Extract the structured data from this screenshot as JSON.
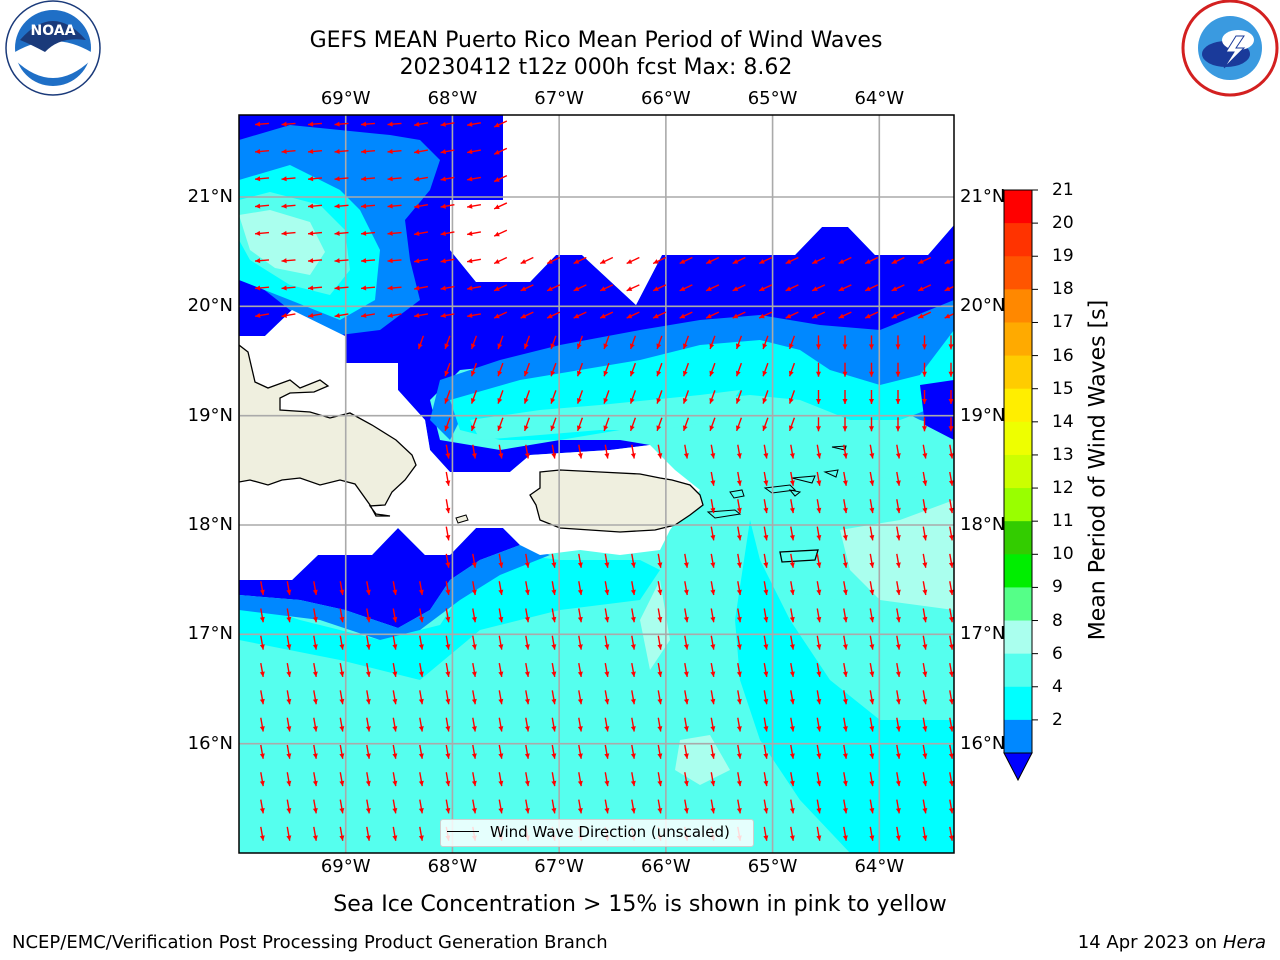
{
  "header": {
    "title_line1": "GEFS MEAN Puerto Rico Mean Period of Wind Waves",
    "title_line2": "20230412 t12z 000h fcst   Max: 8.62"
  },
  "logos": {
    "left": "noa-logo",
    "right": "nws-logo"
  },
  "map": {
    "lon_labels": [
      "69°W",
      "68°W",
      "67°W",
      "66°W",
      "65°W",
      "64°W"
    ],
    "lat_labels": [
      "21°N",
      "20°N",
      "19°N",
      "18°N",
      "17°N",
      "16°N"
    ],
    "lon_values": [
      -69,
      -68,
      -67,
      -66,
      -65,
      -64
    ],
    "lat_values": [
      21,
      20,
      19,
      18,
      17,
      16
    ],
    "extent": {
      "lon_min": -70,
      "lon_max": -63.3,
      "lat_min": 15.0,
      "lat_max": 21.75
    },
    "legend_text": "Wind Wave Direction (unscaled)"
  },
  "colorbar": {
    "label": "Mean Period of Wind Waves [s]",
    "ticks": [
      "21",
      "20",
      "19",
      "18",
      "17",
      "16",
      "15",
      "14",
      "13",
      "12",
      "11",
      "10",
      "9",
      "8",
      "6",
      "4",
      "2"
    ],
    "colors": [
      "#ff0000",
      "#ff3300",
      "#ff5500",
      "#ff8800",
      "#ffaa00",
      "#ffcc00",
      "#ffee00",
      "#eeff00",
      "#ccff00",
      "#99ff00",
      "#33cc00",
      "#00ee00",
      "#55ff88",
      "#aaffee",
      "#55ffee",
      "#00ffff",
      "#0088ff"
    ],
    "under_color": "#0000ff"
  },
  "subtitle": "Sea Ice Concentration > 15% is shown in pink to yellow",
  "footer": {
    "left": "NCEP/EMC/Verification Post Processing Product Generation Branch",
    "date": "14 Apr 2023 on",
    "host": "Hera"
  }
}
